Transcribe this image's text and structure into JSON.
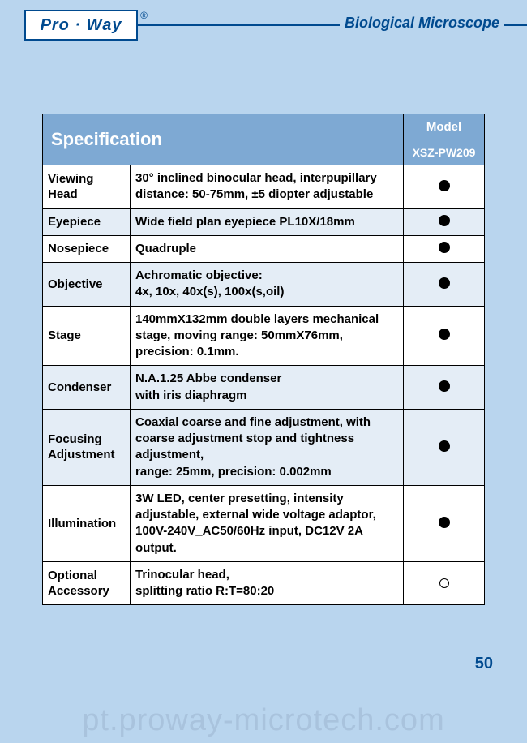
{
  "header": {
    "logo_text": "Pro · Way",
    "title": "Biological Microscope"
  },
  "table": {
    "spec_title": "Specification",
    "model_title": "Model",
    "model_name": "XSZ-PW209",
    "rows": [
      {
        "label": "Viewing Head",
        "desc": "30° inclined binocular head, interpupillary distance: 50-75mm, ±5 diopter adjustable",
        "mark": "filled",
        "alt": false
      },
      {
        "label": "Eyepiece",
        "desc": "Wide field plan eyepiece PL10X/18mm",
        "mark": "filled",
        "alt": true
      },
      {
        "label": "Nosepiece",
        "desc": "Quadruple",
        "mark": "filled",
        "alt": false
      },
      {
        "label": "Objective",
        "desc": "Achromatic objective:\n4x, 10x, 40x(s), 100x(s,oil)",
        "mark": "filled",
        "alt": true
      },
      {
        "label": "Stage",
        "desc": "140mmX132mm double layers mechanical stage, moving range: 50mmX76mm, precision: 0.1mm.",
        "mark": "filled",
        "alt": false
      },
      {
        "label": "Condenser",
        "desc": "N.A.1.25 Abbe condenser\nwith iris diaphragm",
        "mark": "filled",
        "alt": true
      },
      {
        "label": "Focusing Adjustment",
        "desc": "Coaxial coarse and fine adjustment, with coarse adjustment stop and tightness adjustment,\nrange: 25mm, precision: 0.002mm",
        "mark": "filled",
        "alt": true
      },
      {
        "label": "Illumination",
        "desc": "3W LED, center presetting, intensity adjustable, external wide voltage adaptor, 100V-240V_AC50/60Hz input, DC12V 2A output.",
        "mark": "filled",
        "alt": false
      },
      {
        "label": "Optional Accessory",
        "desc": "Trinocular head,\nsplitting ratio R:T=80:20",
        "mark": "empty",
        "alt": false
      }
    ]
  },
  "page_number": "50",
  "watermark": "pt.proway-microtech.com",
  "colors": {
    "page_bg": "#b9d5ee",
    "brand": "#004a8f",
    "table_header_bg": "#7ea9d3",
    "alt_row_bg": "#e4edf6",
    "border": "#000000",
    "white": "#ffffff",
    "watermark": "#a9c3dd"
  }
}
